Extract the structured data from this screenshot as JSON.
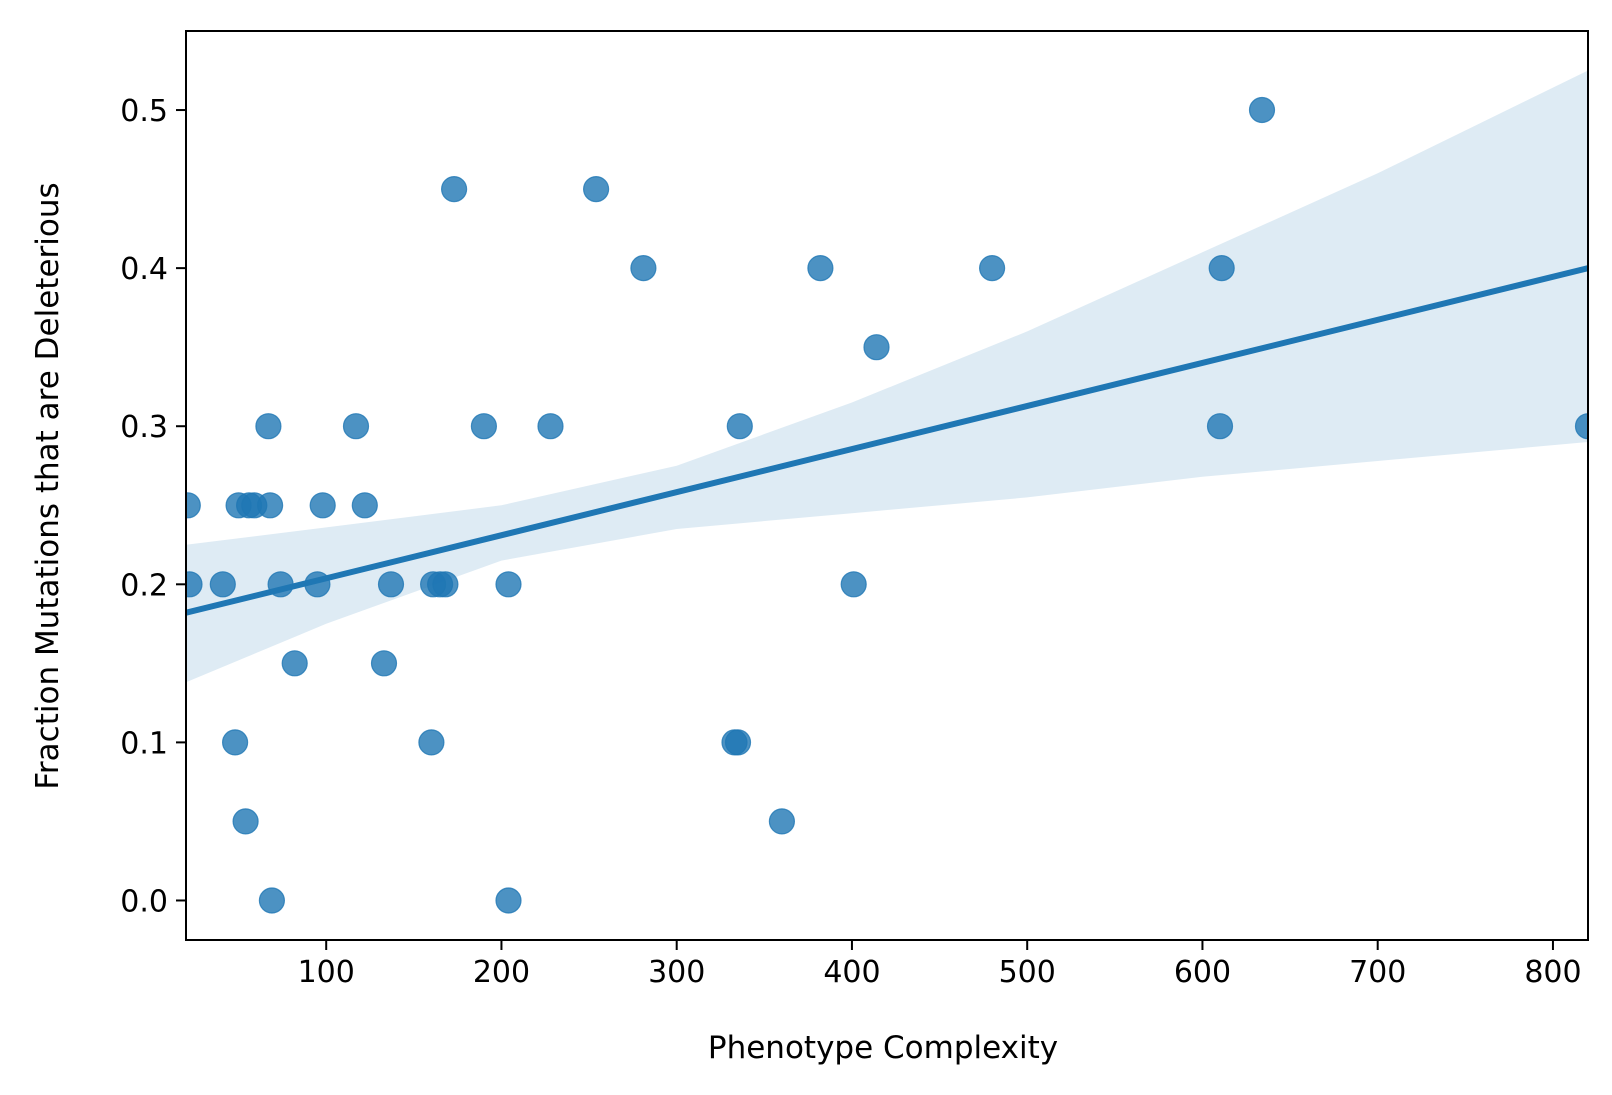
{
  "chart_data": {
    "type": "scatter",
    "xlabel": "Phenotype Complexity",
    "ylabel": "Fraction Mutations that are Deleterious",
    "xlim": [
      20,
      820
    ],
    "ylim": [
      -0.025,
      0.55
    ],
    "xticks": [
      100,
      200,
      300,
      400,
      500,
      600,
      700,
      800
    ],
    "yticks": [
      0.0,
      0.1,
      0.2,
      0.3,
      0.4,
      0.5
    ],
    "grid": false,
    "legend": "none",
    "colors": {
      "points": "#1f77b4",
      "line": "#1f77b4",
      "band": "#1f77b4"
    },
    "points": [
      {
        "x": 21,
        "y": 0.25
      },
      {
        "x": 22,
        "y": 0.2
      },
      {
        "x": 41,
        "y": 0.2
      },
      {
        "x": 48,
        "y": 0.1
      },
      {
        "x": 50,
        "y": 0.25
      },
      {
        "x": 54,
        "y": 0.05
      },
      {
        "x": 56,
        "y": 0.25
      },
      {
        "x": 59,
        "y": 0.25
      },
      {
        "x": 67,
        "y": 0.3
      },
      {
        "x": 68,
        "y": 0.25
      },
      {
        "x": 69,
        "y": 0.0
      },
      {
        "x": 74,
        "y": 0.2
      },
      {
        "x": 82,
        "y": 0.15
      },
      {
        "x": 95,
        "y": 0.2
      },
      {
        "x": 98,
        "y": 0.25
      },
      {
        "x": 117,
        "y": 0.3
      },
      {
        "x": 122,
        "y": 0.25
      },
      {
        "x": 133,
        "y": 0.15
      },
      {
        "x": 137,
        "y": 0.2
      },
      {
        "x": 160,
        "y": 0.1
      },
      {
        "x": 161,
        "y": 0.2
      },
      {
        "x": 165,
        "y": 0.2
      },
      {
        "x": 168,
        "y": 0.2
      },
      {
        "x": 173,
        "y": 0.45
      },
      {
        "x": 190,
        "y": 0.3
      },
      {
        "x": 204,
        "y": 0.0
      },
      {
        "x": 204,
        "y": 0.2
      },
      {
        "x": 228,
        "y": 0.3
      },
      {
        "x": 254,
        "y": 0.45
      },
      {
        "x": 281,
        "y": 0.4
      },
      {
        "x": 333,
        "y": 0.1
      },
      {
        "x": 335,
        "y": 0.1
      },
      {
        "x": 336,
        "y": 0.3
      },
      {
        "x": 360,
        "y": 0.05
      },
      {
        "x": 382,
        "y": 0.4
      },
      {
        "x": 401,
        "y": 0.2
      },
      {
        "x": 414,
        "y": 0.35
      },
      {
        "x": 480,
        "y": 0.4
      },
      {
        "x": 610,
        "y": 0.3
      },
      {
        "x": 611,
        "y": 0.4
      },
      {
        "x": 634,
        "y": 0.5
      },
      {
        "x": 820,
        "y": 0.3
      }
    ],
    "regression": {
      "x": [
        20,
        820
      ],
      "y": [
        0.182,
        0.4
      ]
    },
    "confidence_band": {
      "x": [
        20,
        100,
        200,
        300,
        400,
        500,
        600,
        700,
        820
      ],
      "upper": [
        0.225,
        0.236,
        0.25,
        0.275,
        0.315,
        0.36,
        0.41,
        0.46,
        0.525
      ],
      "lower": [
        0.138,
        0.175,
        0.215,
        0.235,
        0.245,
        0.255,
        0.268,
        0.278,
        0.29
      ]
    }
  }
}
